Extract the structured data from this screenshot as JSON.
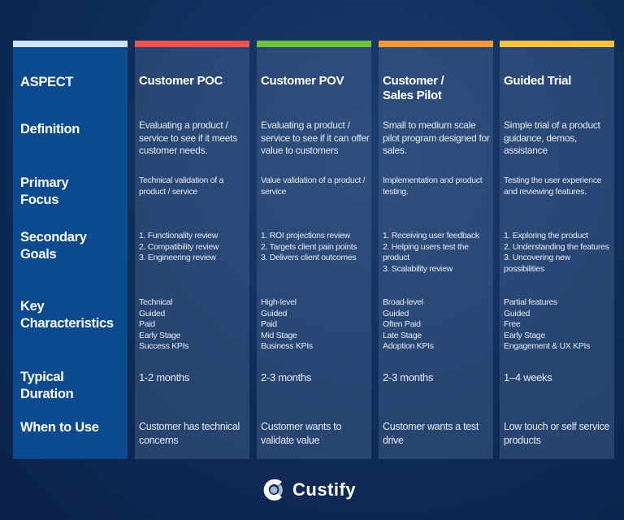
{
  "colors": {
    "aspect": "#cfe4f7",
    "poc": "#ef5350",
    "pov": "#6fc23b",
    "pilot": "#f59a3b",
    "trial": "#f7c33a"
  },
  "aspect": {
    "header": "ASPECT",
    "rows": [
      "Definition",
      "Primary Focus",
      "Secondary Goals",
      "Key Characteristics",
      "Typical Duration",
      "When to Use"
    ]
  },
  "columns": [
    {
      "header": "Customer POC",
      "definition": "Evaluating a product / service to see if it meets customer needs.",
      "focus": "Technical validation of a product / service",
      "goals": [
        "1. Functionality review",
        "2. Compatibility review",
        "3. Engineering review"
      ],
      "characteristics": [
        "Technical",
        "Guided",
        "Paid",
        "Early Stage",
        "Success KPIs"
      ],
      "duration": "1-2 months",
      "when": "Customer has technical concerns"
    },
    {
      "header": "Customer POV",
      "definition": "Evaluating a product / service to see if it can offer value to customers",
      "focus": "Value validation of a product / service",
      "goals": [
        "1. ROI projections review",
        "2. Targets client pain points",
        "3. Delivers client outcomes"
      ],
      "characteristics": [
        "High-level",
        "Guided",
        "Paid",
        "Mid Stage",
        "Business KPIs"
      ],
      "duration": "2-3 months",
      "when": "Customer wants to validate value"
    },
    {
      "header": "Customer / Sales Pilot",
      "definition": "Small to medium scale pilot program designed for sales.",
      "focus": "Implementation and product testing.",
      "goals": [
        "1. Receiving user feedback",
        "2. Helping users test the product",
        "3. Scalability review"
      ],
      "characteristics": [
        "Broad-level",
        "Guided",
        "Often Paid",
        "Late Stage",
        "Adoption KPIs"
      ],
      "duration": "2-3 months",
      "when": "Customer wants a test drive"
    },
    {
      "header": "Guided Trial",
      "definition": "Simple trial of a product guidance, demos, assistance",
      "focus": "Testing the user experience and reviewing features.",
      "goals": [
        "1. Exploring the product",
        "2. Understanding the features",
        "3. Uncovering new possibilities"
      ],
      "characteristics": [
        "Partial features",
        "Guided",
        "Free",
        "Early Stage",
        "Engagement & UX KPIs"
      ],
      "duration": "1–4 weeks",
      "when": "Low touch or self service products"
    }
  ],
  "brand": {
    "name": "Custify",
    "icon": "custify-logo-icon"
  }
}
